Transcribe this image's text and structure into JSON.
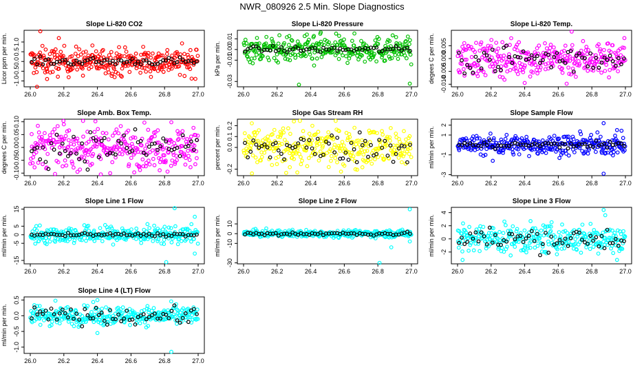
{
  "title": "NWR_080926  2.5 Min. Slope Diagnostics",
  "colors": {
    "red": "#ff0000",
    "green": "#00c000",
    "magenta": "#ff00ff",
    "yellow": "#ffff00",
    "blue": "#0000ff",
    "cyan": "#00ffff",
    "black": "#000000"
  },
  "chart_data": [
    {
      "type": "scatter",
      "title": "Slope Li-820 CO2",
      "ylabel": "Licor ppm per min.",
      "xlim": [
        26.0,
        27.0
      ],
      "xticks": [
        "26.0",
        "26.2",
        "26.4",
        "26.6",
        "26.8",
        "27.0"
      ],
      "ylim": [
        -1.3,
        1.6
      ],
      "yticks": [
        "-1.0",
        "-0.5",
        "0.0",
        "0.5",
        "1.0"
      ],
      "color": "red",
      "spread": 0.35,
      "black_spread": 0.1,
      "outliers": [
        [
          26.06,
          1.55
        ],
        [
          26.04,
          -1.3
        ],
        [
          26.17,
          1.2
        ],
        [
          26.1,
          -0.9
        ]
      ]
    },
    {
      "type": "scatter",
      "title": "Slope Li-820 Pressure",
      "ylabel": "kPa per min.",
      "xlim": [
        26.0,
        27.0
      ],
      "xticks": [
        "26.0",
        "26.2",
        "26.4",
        "26.6",
        "26.8",
        "27.0"
      ],
      "ylim": [
        -0.035,
        0.018
      ],
      "yticks": [
        "-0.03",
        "-0.01",
        "0.00",
        "0.01"
      ],
      "color": "green",
      "spread": 0.006,
      "black_spread": 0.0015,
      "outliers": [
        [
          26.46,
          0.016
        ],
        [
          26.33,
          -0.033
        ],
        [
          26.99,
          -0.032
        ],
        [
          26.42,
          -0.015
        ]
      ]
    },
    {
      "type": "scatter",
      "title": "Slope Li-820 Temp.",
      "ylabel": "degees C per min.",
      "xlim": [
        26.0,
        27.0
      ],
      "xticks": [
        "26.0",
        "26.2",
        "26.4",
        "26.6",
        "26.8",
        "27.0"
      ],
      "ylim": [
        -0.011,
        0.011
      ],
      "yticks": [
        "-0.010",
        "-0.005",
        "0.000",
        "0.005"
      ],
      "color": "magenta",
      "spread": 0.0035,
      "black_spread": 0.003,
      "outliers": [
        [
          26.68,
          0.0105
        ],
        [
          26.4,
          -0.0095
        ],
        [
          26.65,
          -0.0098
        ],
        [
          26.04,
          0.006
        ]
      ]
    },
    {
      "type": "scatter",
      "title": "Slope Amb. Box Temp.",
      "ylabel": "degrees C per min.",
      "xlim": [
        26.0,
        27.0
      ],
      "xticks": [
        "26.0",
        "26.2",
        "26.4",
        "26.6",
        "26.8",
        "27.0"
      ],
      "ylim": [
        -0.11,
        0.11
      ],
      "yticks": [
        "-0.10",
        "-0.05",
        "0.00",
        "0.05",
        "0.10"
      ],
      "color": "magenta",
      "spread": 0.04,
      "black_spread": 0.035,
      "outliers": [
        [
          26.84,
          0.098
        ],
        [
          26.42,
          -0.105
        ],
        [
          26.2,
          0.09
        ]
      ]
    },
    {
      "type": "scatter",
      "title": "Slope Gas Stream RH",
      "ylabel": "percent per min.",
      "xlim": [
        26.0,
        27.0
      ],
      "xticks": [
        "26.0",
        "26.2",
        "26.4",
        "26.6",
        "26.8",
        "27.0"
      ],
      "ylim": [
        -0.26,
        0.26
      ],
      "yticks": [
        "-0.2",
        "0.0",
        "0.1",
        "0.2"
      ],
      "color": "yellow",
      "spread": 0.09,
      "black_spread": 0.07,
      "outliers": [
        [
          26.05,
          -0.24
        ],
        [
          26.32,
          -0.23
        ],
        [
          26.3,
          0.24
        ]
      ]
    },
    {
      "type": "scatter",
      "title": "Slope Sample Flow",
      "ylabel": "ml/min per min.",
      "xlim": [
        26.0,
        27.0
      ],
      "xticks": [
        "26.0",
        "26.2",
        "26.4",
        "26.6",
        "26.8",
        "27.0"
      ],
      "ylim": [
        -3.1,
        2.6
      ],
      "yticks": [
        "-3",
        "-1",
        "1",
        "2"
      ],
      "color": "blue",
      "spread": 0.5,
      "black_spread": 0.2,
      "outliers": [
        [
          26.87,
          2.2
        ],
        [
          26.87,
          -2.9
        ],
        [
          26.21,
          -1.6
        ],
        [
          26.95,
          1.5
        ]
      ]
    },
    {
      "type": "scatter",
      "title": "Slope Line 1 Flow",
      "ylabel": "ml/min per min.",
      "xlim": [
        26.0,
        27.0
      ],
      "xticks": [
        "26.0",
        "26.2",
        "26.4",
        "26.6",
        "26.8",
        "27.0"
      ],
      "ylim": [
        -17,
        16
      ],
      "yticks": [
        "-15",
        "-5",
        "0",
        "5",
        "15"
      ],
      "color": "cyan",
      "spread": 2.5,
      "black_spread": 0.5,
      "outliers": [
        [
          26.86,
          15.5
        ],
        [
          26.81,
          -16
        ],
        [
          26.98,
          10.5
        ],
        [
          26.98,
          -11
        ]
      ]
    },
    {
      "type": "scatter",
      "title": "Slope Line 2 Flow",
      "ylabel": "ml/min per min.",
      "xlim": [
        26.0,
        27.0
      ],
      "xticks": [
        "26.0",
        "26.2",
        "26.4",
        "26.6",
        "26.8",
        "27.0"
      ],
      "ylim": [
        -31,
        27
      ],
      "yticks": [
        "-30",
        "-10",
        "0",
        "10"
      ],
      "color": "cyan",
      "spread": 1.8,
      "black_spread": 1.0,
      "outliers": [
        [
          26.99,
          25
        ],
        [
          26.81,
          -30
        ],
        [
          26.88,
          -14
        ],
        [
          26.99,
          -8
        ]
      ]
    },
    {
      "type": "scatter",
      "title": "Slope Line 3 Flow",
      "ylabel": "ml/min per min.",
      "xlim": [
        26.0,
        27.0
      ],
      "xticks": [
        "26.0",
        "26.2",
        "26.4",
        "26.6",
        "26.8",
        "27.0"
      ],
      "ylim": [
        -3.8,
        4.8
      ],
      "yticks": [
        "-2",
        "0",
        "2",
        "4"
      ],
      "color": "cyan",
      "spread": 1.1,
      "black_spread": 0.9,
      "outliers": [
        [
          26.87,
          4.4
        ],
        [
          26.03,
          -3.2
        ],
        [
          26.95,
          -3.2
        ],
        [
          26.88,
          3.6
        ]
      ]
    },
    {
      "type": "scatter",
      "title": "Slope Line 4 (LT) Flow",
      "ylabel": "ml/min per min.",
      "xlim": [
        26.0,
        27.0
      ],
      "xticks": [
        "26.0",
        "26.2",
        "26.4",
        "26.6",
        "26.8",
        "27.0"
      ],
      "ylim": [
        -1.2,
        0.6
      ],
      "yticks": [
        "-1.0",
        "-0.5",
        "0.0",
        "0.5"
      ],
      "color": "cyan",
      "spread": 0.15,
      "black_spread": 0.13,
      "outliers": [
        [
          26.84,
          -1.15
        ],
        [
          26.4,
          0.5
        ],
        [
          26.15,
          0.48
        ],
        [
          26.4,
          -0.55
        ]
      ]
    }
  ]
}
